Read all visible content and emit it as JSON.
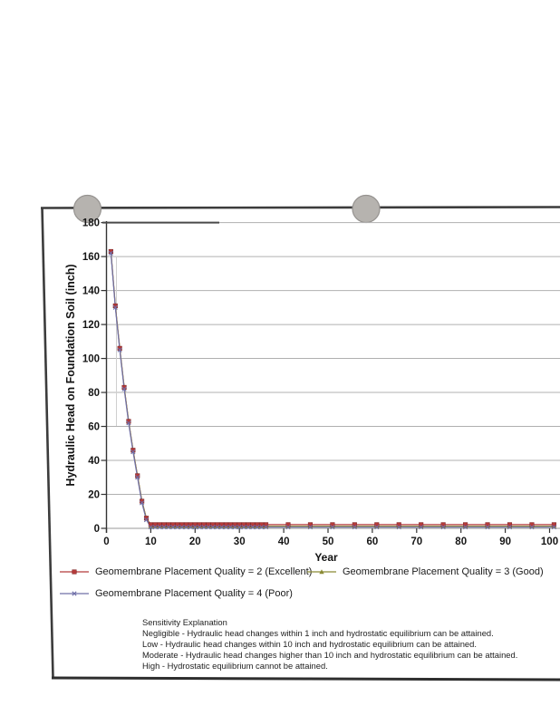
{
  "page": {
    "kind": "scanned report page with chart",
    "background_color": "#ffffff",
    "border_color": "#3c3c3c",
    "punch_hole_color": "#b6b3af"
  },
  "chart_data": {
    "type": "line",
    "title": "",
    "xlabel": "Year",
    "ylabel": "Hydraulic Head on Foundation Soil (inch)",
    "xlim": [
      0,
      100
    ],
    "ylim": [
      0,
      180
    ],
    "xticks": [
      0,
      10,
      20,
      30,
      40,
      50,
      60,
      70,
      80,
      90,
      100
    ],
    "yticks": [
      0,
      20,
      40,
      60,
      80,
      100,
      120,
      140,
      160,
      180
    ],
    "grid": "horizontal gridlines only",
    "legend_position": "below chart, two columns",
    "x": [
      1,
      2,
      3,
      4,
      5,
      6,
      7,
      8,
      9,
      10,
      11,
      12,
      13,
      14,
      15,
      16,
      17,
      18,
      19,
      20,
      21,
      22,
      23,
      24,
      25,
      26,
      27,
      28,
      29,
      30,
      31,
      32,
      33,
      34,
      35,
      36,
      41,
      46,
      51,
      56,
      61,
      66,
      71,
      76,
      81,
      86,
      91,
      96,
      101
    ],
    "series": [
      {
        "name": "Geomembrane Placement Quality = 2 (Excellent)",
        "color": "#b43a3a",
        "marker": "square",
        "values": [
          163,
          131,
          106,
          83,
          63,
          46,
          31,
          16,
          6,
          2.2,
          2.2,
          2.2,
          2.2,
          2.2,
          2.2,
          2.2,
          2.2,
          2.2,
          2.2,
          2.2,
          2.2,
          2.2,
          2.2,
          2.2,
          2.2,
          2.2,
          2.2,
          2.2,
          2.2,
          2.2,
          2.2,
          2.2,
          2.2,
          2.2,
          2.2,
          2.2,
          2.2,
          2.2,
          2.2,
          2.2,
          2.2,
          2.2,
          2.2,
          2.2,
          2.2,
          2.2,
          2.2,
          2.2,
          2.2
        ]
      },
      {
        "name": "Geomembrane Placement Quality = 3 (Good)",
        "color": "#8b8b35",
        "marker": "triangle",
        "values": [
          163,
          131,
          106,
          83,
          63,
          46,
          31,
          16,
          6,
          1.2,
          1.2,
          1.2,
          1.2,
          1.2,
          1.2,
          1.2,
          1.2,
          1.2,
          1.2,
          1.2,
          1.2,
          1.2,
          1.2,
          1.2,
          1.2,
          1.2,
          1.2,
          1.2,
          1.2,
          1.2,
          1.2,
          1.2,
          1.2,
          1.2,
          1.2,
          1.2,
          1.2,
          1.2,
          1.2,
          1.2,
          1.2,
          1.2,
          1.2,
          1.2,
          1.2,
          1.2,
          1.2,
          1.2,
          1.2
        ]
      },
      {
        "name": "Geomembrane Placement Quality = 4 (Poor)",
        "color": "#6f6fa8",
        "marker": "x",
        "values": [
          162,
          130,
          105,
          82,
          62,
          45,
          30,
          15,
          5,
          0.7,
          0.7,
          0.7,
          0.7,
          0.7,
          0.7,
          0.7,
          0.7,
          0.7,
          0.7,
          0.7,
          0.7,
          0.7,
          0.7,
          0.7,
          0.7,
          0.7,
          0.7,
          0.7,
          0.7,
          0.7,
          0.7,
          0.7,
          0.7,
          0.7,
          0.7,
          0.7,
          0.7,
          0.7,
          0.7,
          0.7,
          0.7,
          0.7,
          0.7,
          0.7,
          0.7,
          0.7,
          0.7,
          0.7,
          0.7
        ]
      }
    ]
  },
  "notes": {
    "title": "Sensitivity Explanation",
    "lines": [
      "Negligible - Hydraulic head changes within 1 inch and hydrostatic equilibrium can be attained.",
      "Low - Hydraulic head changes within 10 inch and hydrostatic equilibrium can be attained.",
      "Moderate - Hydraulic head changes higher than 10 inch and hydrostatic equilibrium can be attained.",
      "High - Hydrostatic equilibrium cannot be attained."
    ]
  }
}
